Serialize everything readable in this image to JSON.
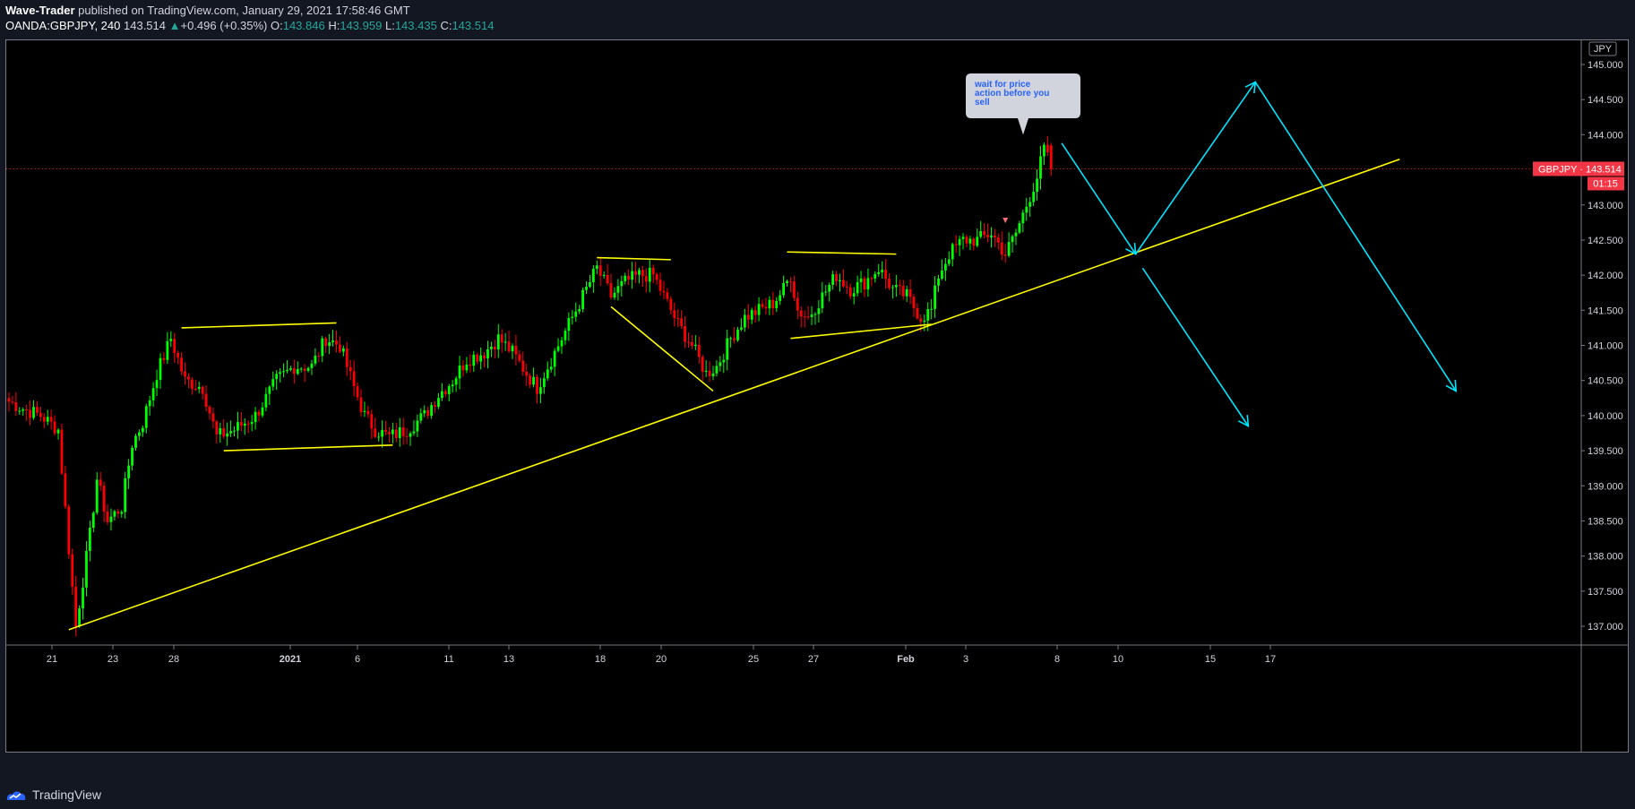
{
  "header": {
    "author": "Wave-Trader",
    "published_text": " published on TradingView.com, January 29, 2021 17:58:46 GMT",
    "symbol": "OANDA:GBPJPY, 240",
    "last": "143.514",
    "change": "+0.496 (+0.35%)",
    "o_label": "O:",
    "o_value": "143.846",
    "h_label": "H:",
    "h_value": "143.959",
    "l_label": "L:",
    "l_value": "143.435",
    "c_label": "C:",
    "c_value": "143.514"
  },
  "footer": {
    "brand": "TradingView"
  },
  "colors": {
    "up": "#00ff00",
    "down": "#ff0000",
    "trendline": "#ffff00",
    "projection": "#00e5ff",
    "price_line": "#ff0000",
    "background": "#000000"
  },
  "chart_data": {
    "type": "candlestick",
    "title": "",
    "symbol": "GBPJPY",
    "currency_badge": "JPY",
    "current_price_label": "GBPJPY · 143.514",
    "current_price": 143.514,
    "countdown": "01:15",
    "ylim": [
      136.8,
      145.6
    ],
    "y_ticks": [
      "145.000",
      "144.500",
      "144.000",
      "143.000",
      "142.500",
      "142.000",
      "141.500",
      "141.000",
      "140.500",
      "140.000",
      "139.500",
      "139.000",
      "138.500",
      "138.000",
      "137.500",
      "137.000"
    ],
    "x_ticks": [
      {
        "label": "21",
        "bold": false
      },
      {
        "label": "23",
        "bold": false
      },
      {
        "label": "28",
        "bold": false
      },
      {
        "label": "2021",
        "bold": true
      },
      {
        "label": "6",
        "bold": false
      },
      {
        "label": "11",
        "bold": false
      },
      {
        "label": "13",
        "bold": false
      },
      {
        "label": "18",
        "bold": false
      },
      {
        "label": "20",
        "bold": false
      },
      {
        "label": "25",
        "bold": false
      },
      {
        "label": "27",
        "bold": false
      },
      {
        "label": "Feb",
        "bold": true
      },
      {
        "label": "3",
        "bold": false
      },
      {
        "label": "8",
        "bold": false
      },
      {
        "label": "10",
        "bold": false
      },
      {
        "label": "15",
        "bold": false
      },
      {
        "label": "17",
        "bold": false
      }
    ],
    "anchors": [
      {
        "x": 0,
        "y": 140.2
      },
      {
        "x": 4,
        "y": 140.1
      },
      {
        "x": 9,
        "y": 140.0
      },
      {
        "x": 14,
        "y": 139.8
      },
      {
        "x": 17,
        "y": 138.1
      },
      {
        "x": 19,
        "y": 137.0
      },
      {
        "x": 23,
        "y": 138.3
      },
      {
        "x": 25,
        "y": 139.1
      },
      {
        "x": 28,
        "y": 138.5
      },
      {
        "x": 32,
        "y": 138.7
      },
      {
        "x": 35,
        "y": 139.6
      },
      {
        "x": 38,
        "y": 139.9
      },
      {
        "x": 42,
        "y": 140.6
      },
      {
        "x": 46,
        "y": 141.1
      },
      {
        "x": 50,
        "y": 140.5
      },
      {
        "x": 55,
        "y": 140.4
      },
      {
        "x": 59,
        "y": 139.7
      },
      {
        "x": 64,
        "y": 139.8
      },
      {
        "x": 70,
        "y": 140.0
      },
      {
        "x": 76,
        "y": 140.5
      },
      {
        "x": 81,
        "y": 140.7
      },
      {
        "x": 86,
        "y": 140.7
      },
      {
        "x": 90,
        "y": 141.1
      },
      {
        "x": 94,
        "y": 141.0
      },
      {
        "x": 98,
        "y": 140.4
      },
      {
        "x": 101,
        "y": 140.0
      },
      {
        "x": 104,
        "y": 139.8
      },
      {
        "x": 108,
        "y": 139.7
      },
      {
        "x": 113,
        "y": 139.8
      },
      {
        "x": 118,
        "y": 140.0
      },
      {
        "x": 122,
        "y": 140.3
      },
      {
        "x": 126,
        "y": 140.5
      },
      {
        "x": 130,
        "y": 140.8
      },
      {
        "x": 135,
        "y": 140.9
      },
      {
        "x": 139,
        "y": 141.1
      },
      {
        "x": 143,
        "y": 140.9
      },
      {
        "x": 147,
        "y": 140.6
      },
      {
        "x": 150,
        "y": 140.4
      },
      {
        "x": 154,
        "y": 140.8
      },
      {
        "x": 158,
        "y": 141.2
      },
      {
        "x": 161,
        "y": 141.5
      },
      {
        "x": 164,
        "y": 141.8
      },
      {
        "x": 167,
        "y": 142.1
      },
      {
        "x": 171,
        "y": 141.7
      },
      {
        "x": 175,
        "y": 141.9
      },
      {
        "x": 179,
        "y": 142.0
      },
      {
        "x": 183,
        "y": 142.0
      },
      {
        "x": 187,
        "y": 141.6
      },
      {
        "x": 190,
        "y": 141.3
      },
      {
        "x": 194,
        "y": 141.0
      },
      {
        "x": 198,
        "y": 140.6
      },
      {
        "x": 201,
        "y": 140.7
      },
      {
        "x": 205,
        "y": 141.1
      },
      {
        "x": 209,
        "y": 141.4
      },
      {
        "x": 213,
        "y": 141.5
      },
      {
        "x": 217,
        "y": 141.6
      },
      {
        "x": 220,
        "y": 141.8
      },
      {
        "x": 222,
        "y": 142.0
      },
      {
        "x": 224,
        "y": 141.5
      },
      {
        "x": 227,
        "y": 141.4
      },
      {
        "x": 231,
        "y": 141.7
      },
      {
        "x": 235,
        "y": 142.0
      },
      {
        "x": 239,
        "y": 141.8
      },
      {
        "x": 243,
        "y": 141.9
      },
      {
        "x": 247,
        "y": 142.1
      },
      {
        "x": 251,
        "y": 141.8
      },
      {
        "x": 255,
        "y": 141.7
      },
      {
        "x": 259,
        "y": 141.4
      },
      {
        "x": 262,
        "y": 141.5
      },
      {
        "x": 264,
        "y": 142.0
      },
      {
        "x": 267,
        "y": 142.3
      },
      {
        "x": 271,
        "y": 142.5
      },
      {
        "x": 275,
        "y": 142.5
      },
      {
        "x": 279,
        "y": 142.6
      },
      {
        "x": 283,
        "y": 142.3
      },
      {
        "x": 286,
        "y": 142.6
      },
      {
        "x": 289,
        "y": 143.0
      },
      {
        "x": 292,
        "y": 143.4
      },
      {
        "x": 294,
        "y": 143.8
      },
      {
        "x": 296,
        "y": 143.514
      }
    ],
    "trendlines": [
      {
        "x1": 17,
        "y1": 136.95,
        "x2": 395,
        "y2": 143.65,
        "color": "yellow"
      },
      {
        "x1": 49,
        "y1": 141.25,
        "x2": 93,
        "y2": 141.32,
        "color": "yellow"
      },
      {
        "x1": 61,
        "y1": 139.5,
        "x2": 109,
        "y2": 139.58,
        "color": "yellow"
      },
      {
        "x1": 167,
        "y1": 142.25,
        "x2": 188,
        "y2": 142.22,
        "color": "yellow"
      },
      {
        "x1": 171,
        "y1": 141.55,
        "x2": 200,
        "y2": 140.35,
        "color": "yellow"
      },
      {
        "x1": 221,
        "y1": 142.33,
        "x2": 252,
        "y2": 142.3,
        "color": "yellow"
      },
      {
        "x1": 222,
        "y1": 141.1,
        "x2": 262,
        "y2": 141.3,
        "color": "yellow"
      }
    ],
    "projection_arrows": [
      {
        "x1": 299,
        "y1": 143.88,
        "x2": 320,
        "y2": 142.3
      },
      {
        "x1": 320,
        "y1": 142.3,
        "x2": 354,
        "y2": 144.75
      },
      {
        "x1": 354,
        "y1": 144.75,
        "x2": 411,
        "y2": 140.35
      },
      {
        "x1": 322,
        "y1": 142.1,
        "x2": 352,
        "y2": 139.85
      }
    ],
    "callout": {
      "text": "wait for price action before you sell",
      "x": 291,
      "y": 144.7,
      "pointer_y": 144.0
    },
    "marker": {
      "x": 283,
      "y": 142.78
    }
  }
}
